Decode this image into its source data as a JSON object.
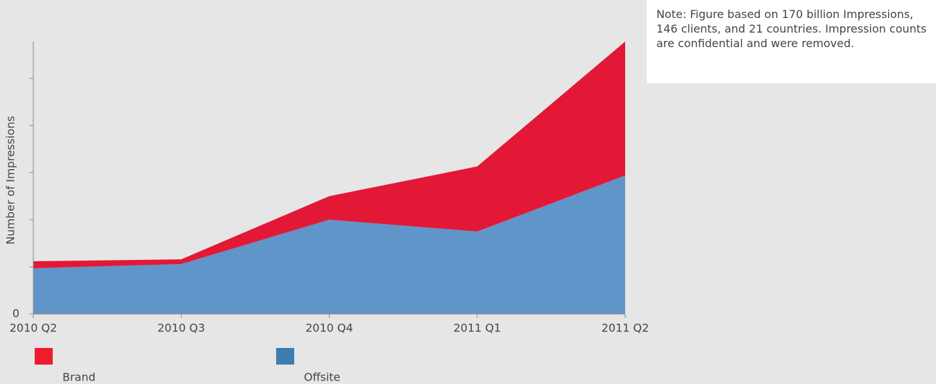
{
  "chart_data": {
    "type": "stacked_area",
    "y_axis_label": "Number of Impressions",
    "note": "Note: Figure based on 170 billion Impressions, 146 clients, and 21 countries. Impression counts are confidential and were removed.",
    "categories": [
      "2010 Q2",
      "2010 Q3",
      "2010 Q4",
      "2011 Q1",
      "2011 Q2"
    ],
    "series": [
      {
        "name": "Offsite",
        "color": "#5f95c9",
        "legend_color": "#3f7cb0",
        "values": [
          0.97,
          1.06,
          2.0,
          1.75,
          2.94
        ]
      },
      {
        "name": "Brand",
        "color": "#e31837",
        "legend_color": "#ed1c2e",
        "values": [
          0.15,
          0.1,
          0.5,
          1.38,
          2.84
        ]
      }
    ],
    "ylim": [
      0,
      5.78
    ],
    "yticks": [
      0
    ],
    "yticks_unlabeled": [
      1,
      2,
      3,
      4,
      5
    ],
    "legend_order": [
      1,
      0
    ]
  }
}
